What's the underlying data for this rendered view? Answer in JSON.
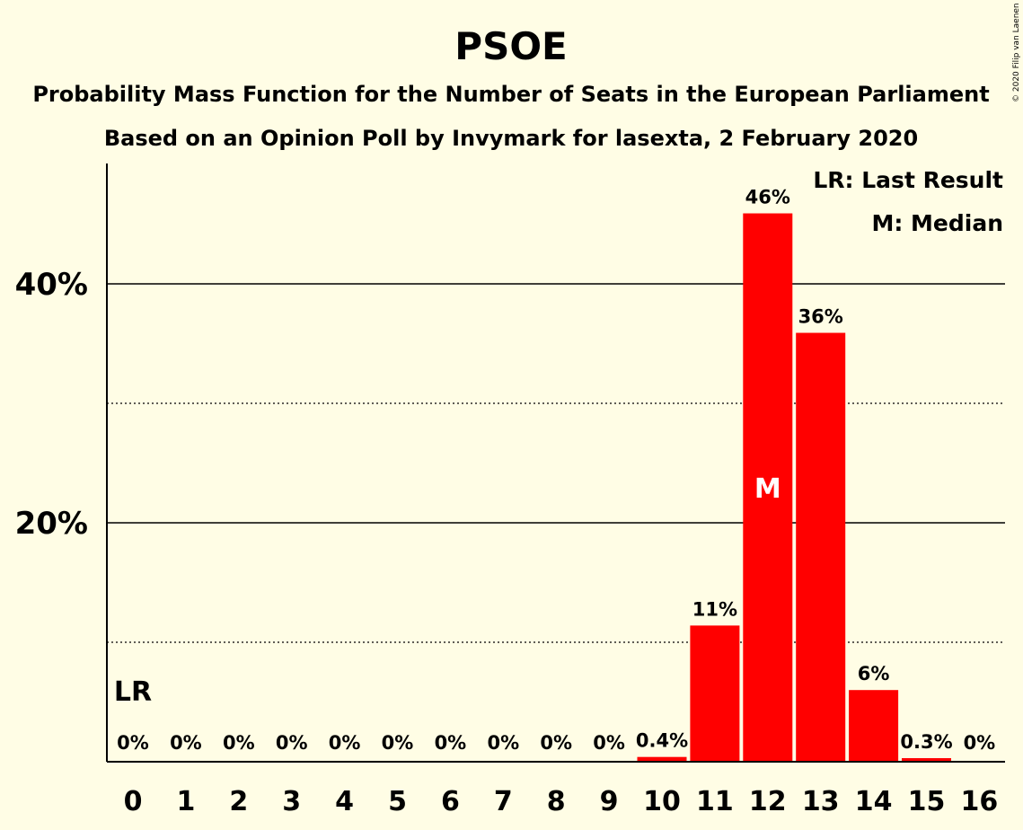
{
  "chart_data": {
    "type": "bar",
    "title": "PSOE",
    "subtitle_lines": [
      "Probability Mass Function for the Number of Seats in the European Parliament",
      "Based on an Opinion Poll by Invymark for lasexta, 2 February 2020"
    ],
    "copyright": "© 2020 Filip van Laenen",
    "categories": [
      "0",
      "1",
      "2",
      "3",
      "4",
      "5",
      "6",
      "7",
      "8",
      "9",
      "10",
      "11",
      "12",
      "13",
      "14",
      "15",
      "16"
    ],
    "values": [
      0,
      0,
      0,
      0,
      0,
      0,
      0,
      0,
      0,
      0,
      0.4,
      11.4,
      45.9,
      35.9,
      6.0,
      0.3,
      0
    ],
    "value_labels": [
      "0%",
      "0%",
      "0%",
      "0%",
      "0%",
      "0%",
      "0%",
      "0%",
      "0%",
      "0%",
      "0.4%",
      "11%",
      "46%",
      "36%",
      "6%",
      "0.3%",
      "0%"
    ],
    "ylim": [
      0,
      50
    ],
    "yticks": [
      {
        "value": 20,
        "label": "20%"
      },
      {
        "value": 40,
        "label": "40%"
      }
    ],
    "minor_gridlines": [
      10,
      30
    ],
    "last_result": {
      "category": "0",
      "label": "LR"
    },
    "median": {
      "category": "12",
      "label": "M"
    },
    "legend": [
      "LR: Last Result",
      "M: Median"
    ],
    "legend_position": "top-right",
    "bar_color": "#ff0000",
    "background_color": "#fffde5"
  }
}
